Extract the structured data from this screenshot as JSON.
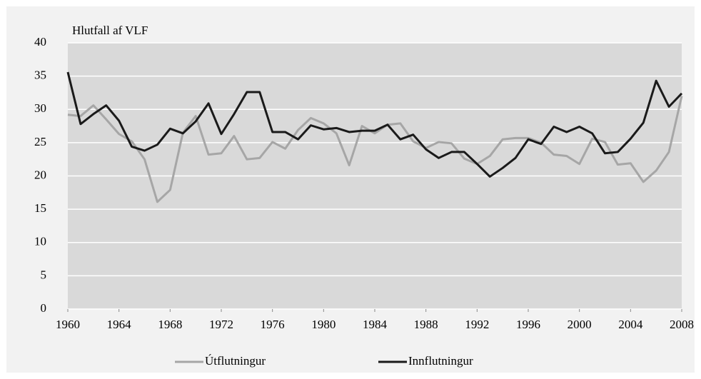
{
  "chart_data": {
    "type": "line",
    "y_label": "Hlutfall af VLF",
    "x": [
      1960,
      1961,
      1962,
      1963,
      1964,
      1965,
      1966,
      1967,
      1968,
      1969,
      1970,
      1971,
      1972,
      1973,
      1974,
      1975,
      1976,
      1977,
      1978,
      1979,
      1980,
      1981,
      1982,
      1983,
      1984,
      1985,
      1986,
      1987,
      1988,
      1989,
      1990,
      1991,
      1992,
      1993,
      1994,
      1995,
      1996,
      1997,
      1998,
      1999,
      2000,
      2001,
      2002,
      2003,
      2004,
      2005,
      2006,
      2007,
      2008
    ],
    "series": [
      {
        "name": "Útflutningur",
        "color": "#a6a6a6",
        "values": [
          29.2,
          29.0,
          30.6,
          28.5,
          26.3,
          25.2,
          22.5,
          16.1,
          17.9,
          26.5,
          29.0,
          23.2,
          23.4,
          26.0,
          22.5,
          22.7,
          25.1,
          24.1,
          26.9,
          28.7,
          27.9,
          26.4,
          21.6,
          27.5,
          26.4,
          27.7,
          27.9,
          25.2,
          24.2,
          25.1,
          24.9,
          22.6,
          21.8,
          23.0,
          25.5,
          25.7,
          25.7,
          25.0,
          23.2,
          23.0,
          21.8,
          25.6,
          25.1,
          21.7,
          21.9,
          19.1,
          20.8,
          23.6,
          32.0
        ]
      },
      {
        "name": "Innflutningur",
        "color": "#1a1a1a",
        "values": [
          35.6,
          27.8,
          29.3,
          30.6,
          28.3,
          24.4,
          23.8,
          24.7,
          27.1,
          26.4,
          28.2,
          30.9,
          26.3,
          29.3,
          32.6,
          32.6,
          26.6,
          26.6,
          25.5,
          27.6,
          27.0,
          27.2,
          26.6,
          26.8,
          26.8,
          27.7,
          25.5,
          26.2,
          24.0,
          22.7,
          23.6,
          23.6,
          21.8,
          19.9,
          21.2,
          22.7,
          25.5,
          24.8,
          27.4,
          26.6,
          27.4,
          26.4,
          23.4,
          23.6,
          25.6,
          28.0,
          34.3,
          30.4,
          32.4
        ]
      }
    ],
    "xlim": [
      1960,
      2008
    ],
    "xticks": [
      1960,
      1964,
      1968,
      1972,
      1976,
      1980,
      1984,
      1988,
      1992,
      1996,
      2000,
      2004,
      2008
    ],
    "ylim": [
      0,
      40
    ],
    "yticks": [
      0,
      5,
      10,
      15,
      20,
      25,
      30,
      35,
      40
    ],
    "grid": true,
    "legend": "bottom"
  }
}
